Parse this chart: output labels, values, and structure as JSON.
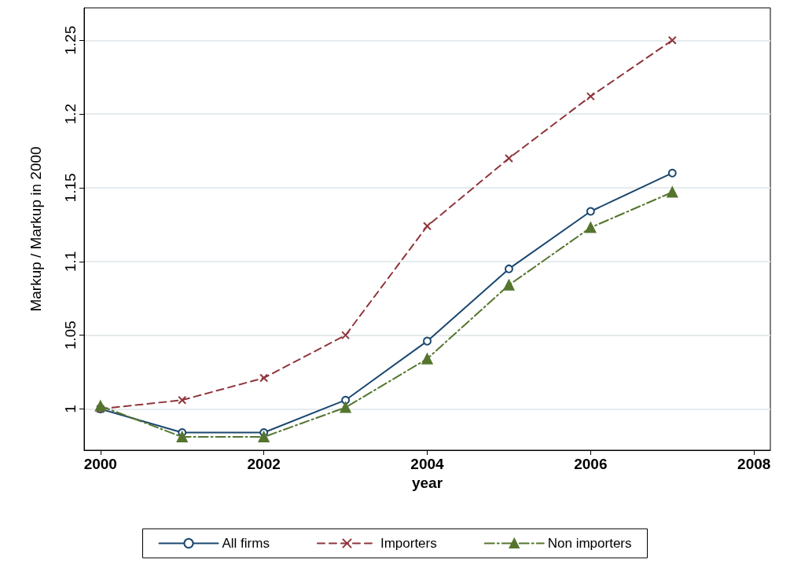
{
  "chart_data": {
    "type": "line",
    "xlabel": "year",
    "ylabel": "Markup / Markup in 2000",
    "x": [
      2000,
      2001,
      2002,
      2003,
      2004,
      2005,
      2006,
      2007
    ],
    "series": [
      {
        "name": "All firms",
        "color": "#1a476f",
        "marker": "circle",
        "line_style": "solid",
        "values": [
          1.0,
          0.984,
          0.984,
          1.006,
          1.046,
          1.095,
          1.134,
          1.16
        ]
      },
      {
        "name": "Importers",
        "color": "#90353b",
        "marker": "cross",
        "line_style": "dashed",
        "values": [
          1.0,
          1.006,
          1.021,
          1.05,
          1.124,
          1.17,
          1.212,
          1.25
        ]
      },
      {
        "name": "Non importers",
        "color": "#55752f",
        "marker": "triangle",
        "line_style": "dashdot",
        "values": [
          1.002,
          0.981,
          0.981,
          1.001,
          1.034,
          1.084,
          1.123,
          1.147
        ]
      }
    ],
    "xlim": [
      1999.8,
      2008.2
    ],
    "xticks": [
      2000,
      2002,
      2004,
      2006,
      2008
    ],
    "ylim": [
      0.972,
      1.272
    ],
    "yticks": [
      1,
      1.05,
      1.1,
      1.15,
      1.2,
      1.25
    ],
    "grid": "y",
    "legend": "bottom"
  }
}
